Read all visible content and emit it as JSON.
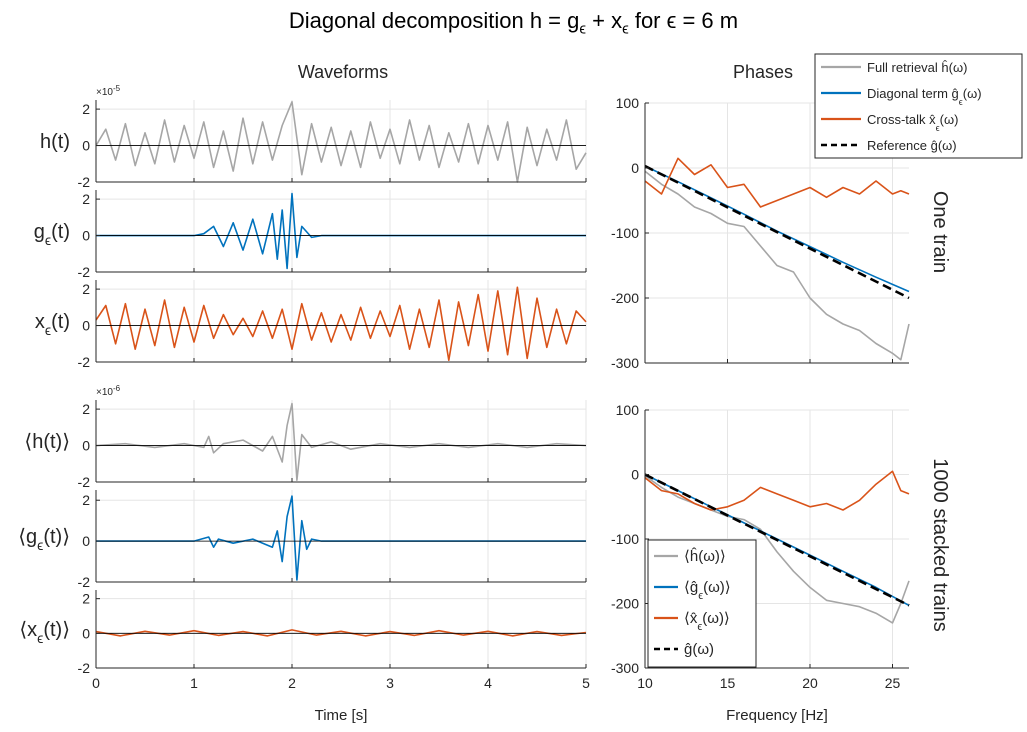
{
  "figure": {
    "title_parts": [
      "Diagonal decomposition h  = g",
      "ϵ",
      " + x",
      "ϵ",
      " for ϵ = 6 m"
    ],
    "left_column_title": "Waveforms",
    "right_column_title": "Phases",
    "row_label_top": "One train",
    "row_label_bottom": "1000 stacked trains"
  },
  "colors": {
    "full": "#a6a6a6",
    "diagonal": "#0072bd",
    "crosstalk": "#d95319",
    "reference": "#000000",
    "grid": "#e5e5e5"
  },
  "top_legend": [
    {
      "label": "Full retrieval ĥ(ω)",
      "color": "#a6a6a6",
      "dashed": false
    },
    {
      "label": "Diagonal term ĝ_ϵ(ω)",
      "color": "#0072bd",
      "dashed": false
    },
    {
      "label": "Cross-talk x̂_ϵ(ω)",
      "color": "#d95319",
      "dashed": false
    },
    {
      "label": "Reference ĝ(ω)",
      "color": "#000000",
      "dashed": true
    }
  ],
  "bottom_legend": [
    {
      "label": "⟨ĥ(ω)⟩",
      "color": "#a6a6a6",
      "dashed": false
    },
    {
      "label": "⟨ĝ_ϵ(ω)⟩",
      "color": "#0072bd",
      "dashed": false
    },
    {
      "label": "⟨x̂_ϵ(ω)⟩",
      "color": "#d95319",
      "dashed": false
    },
    {
      "label": "ĝ(ω)",
      "color": "#000000",
      "dashed": true
    }
  ],
  "chart_data": [
    {
      "type": "line",
      "panel": "waveform",
      "ylabel": "h(t)",
      "exponent": "×10-5",
      "xlim": [
        0,
        5
      ],
      "ylim": [
        -2,
        2.5
      ],
      "yticks": [
        -2,
        0,
        2
      ],
      "show_xticklabels": false,
      "series": [
        {
          "color": "#a6a6a6",
          "x": [
            0.0,
            0.1,
            0.2,
            0.3,
            0.4,
            0.5,
            0.6,
            0.7,
            0.8,
            0.9,
            1.0,
            1.1,
            1.2,
            1.3,
            1.4,
            1.5,
            1.6,
            1.7,
            1.8,
            1.9,
            2.0,
            2.1,
            2.2,
            2.3,
            2.4,
            2.5,
            2.6,
            2.7,
            2.8,
            2.9,
            3.0,
            3.1,
            3.2,
            3.3,
            3.4,
            3.5,
            3.6,
            3.7,
            3.8,
            3.9,
            4.0,
            4.1,
            4.2,
            4.3,
            4.4,
            4.5,
            4.6,
            4.7,
            4.8,
            4.9,
            5.0
          ],
          "y": [
            0.0,
            0.9,
            -0.8,
            1.2,
            -1.1,
            0.7,
            -1.0,
            1.4,
            -0.9,
            1.1,
            -0.7,
            1.3,
            -1.2,
            0.8,
            -1.4,
            1.5,
            -1.0,
            1.3,
            -0.8,
            1.1,
            2.4,
            -1.6,
            1.2,
            -0.9,
            1.0,
            -1.1,
            0.8,
            -1.2,
            1.3,
            -0.7,
            0.9,
            -1.0,
            1.4,
            -0.8,
            1.1,
            -1.2,
            0.7,
            -0.9,
            1.2,
            -1.0,
            1.1,
            -0.8,
            1.3,
            -2.0,
            1.0,
            -1.1,
            0.9,
            -0.8,
            1.4,
            -1.3,
            -0.4
          ]
        }
      ]
    },
    {
      "type": "line",
      "panel": "waveform",
      "ylabel": "g_ϵ(t)",
      "xlim": [
        0,
        5
      ],
      "ylim": [
        -2,
        2.5
      ],
      "yticks": [
        -2,
        0,
        2
      ],
      "show_xticklabels": false,
      "series": [
        {
          "color": "#0072bd",
          "x": [
            0.0,
            0.5,
            1.0,
            1.1,
            1.2,
            1.3,
            1.4,
            1.5,
            1.6,
            1.7,
            1.8,
            1.85,
            1.9,
            1.95,
            2.0,
            2.05,
            2.1,
            2.2,
            2.3,
            2.5,
            3.0,
            4.0,
            5.0
          ],
          "y": [
            0.0,
            0.0,
            0.0,
            0.1,
            0.5,
            -0.6,
            0.7,
            -0.8,
            0.9,
            -1.0,
            1.2,
            -1.3,
            1.4,
            -1.8,
            2.3,
            -1.2,
            0.5,
            -0.1,
            0.0,
            0.0,
            0.0,
            0.0,
            0.0
          ]
        }
      ]
    },
    {
      "type": "line",
      "panel": "waveform",
      "ylabel": "x_ϵ(t)",
      "xlim": [
        0,
        5
      ],
      "ylim": [
        -2,
        2.5
      ],
      "yticks": [
        -2,
        0,
        2
      ],
      "show_xticklabels": false,
      "series": [
        {
          "color": "#d95319",
          "x": [
            0.0,
            0.1,
            0.2,
            0.3,
            0.4,
            0.5,
            0.6,
            0.7,
            0.8,
            0.9,
            1.0,
            1.1,
            1.2,
            1.3,
            1.4,
            1.5,
            1.6,
            1.7,
            1.8,
            1.9,
            2.0,
            2.1,
            2.2,
            2.3,
            2.4,
            2.5,
            2.6,
            2.7,
            2.8,
            2.9,
            3.0,
            3.1,
            3.2,
            3.3,
            3.4,
            3.5,
            3.6,
            3.7,
            3.8,
            3.9,
            4.0,
            4.1,
            4.2,
            4.3,
            4.4,
            4.5,
            4.6,
            4.7,
            4.8,
            4.9,
            5.0
          ],
          "y": [
            0.3,
            1.1,
            -1.0,
            1.2,
            -1.3,
            0.9,
            -1.1,
            1.4,
            -1.2,
            1.0,
            -0.9,
            1.1,
            -0.7,
            0.6,
            -0.5,
            0.4,
            -0.6,
            0.8,
            -0.7,
            0.9,
            -1.3,
            1.2,
            -0.8,
            0.7,
            -0.9,
            0.6,
            -0.8,
            1.0,
            -0.7,
            0.8,
            -0.6,
            1.1,
            -1.3,
            0.9,
            -1.2,
            1.4,
            -1.9,
            1.3,
            -1.1,
            1.7,
            -1.4,
            1.9,
            -1.6,
            2.1,
            -1.8,
            1.5,
            -1.2,
            0.9,
            -1.0,
            0.8,
            0.2
          ]
        }
      ]
    },
    {
      "type": "line",
      "panel": "waveform",
      "ylabel": "⟨h(t)⟩",
      "exponent": "×10-6",
      "xlim": [
        0,
        5
      ],
      "ylim": [
        -2,
        2.5
      ],
      "yticks": [
        -2,
        0,
        2
      ],
      "show_xticklabels": false,
      "series": [
        {
          "color": "#a6a6a6",
          "x": [
            0.0,
            0.3,
            0.6,
            0.9,
            1.1,
            1.15,
            1.2,
            1.3,
            1.5,
            1.7,
            1.8,
            1.9,
            1.95,
            2.0,
            2.05,
            2.1,
            2.2,
            2.4,
            2.6,
            2.9,
            3.2,
            3.5,
            3.8,
            4.1,
            4.4,
            4.7,
            5.0
          ],
          "y": [
            0.0,
            0.1,
            -0.1,
            0.1,
            -0.1,
            0.5,
            -0.4,
            0.1,
            0.3,
            -0.3,
            0.5,
            -0.9,
            1.1,
            2.3,
            -1.9,
            0.6,
            -0.1,
            0.2,
            -0.2,
            0.1,
            -0.1,
            0.1,
            -0.1,
            0.1,
            -0.1,
            0.1,
            0.0
          ]
        }
      ]
    },
    {
      "type": "line",
      "panel": "waveform",
      "ylabel": "⟨g_ϵ(t)⟩",
      "xlim": [
        0,
        5
      ],
      "ylim": [
        -2,
        2.5
      ],
      "yticks": [
        -2,
        0,
        2
      ],
      "show_xticklabels": false,
      "series": [
        {
          "color": "#0072bd",
          "x": [
            0.0,
            1.0,
            1.15,
            1.2,
            1.25,
            1.4,
            1.6,
            1.8,
            1.85,
            1.9,
            1.95,
            2.0,
            2.05,
            2.1,
            2.15,
            2.2,
            2.3,
            2.5,
            5.0
          ],
          "y": [
            0.0,
            0.0,
            0.2,
            -0.3,
            0.1,
            -0.1,
            0.1,
            -0.3,
            0.5,
            -1.0,
            1.2,
            2.2,
            -1.9,
            1.0,
            -0.4,
            0.1,
            0.0,
            0.0,
            0.0
          ]
        }
      ]
    },
    {
      "type": "line",
      "panel": "waveform",
      "ylabel": "⟨x_ϵ(t)⟩",
      "xlim": [
        0,
        5
      ],
      "ylim": [
        -2,
        2.5
      ],
      "yticks": [
        -2,
        0,
        2
      ],
      "show_xticklabels": true,
      "xticks": [
        0,
        1,
        2,
        3,
        4,
        5
      ],
      "xlabel": "Time   [s]",
      "series": [
        {
          "color": "#d95319",
          "x": [
            0.0,
            0.25,
            0.5,
            0.75,
            1.0,
            1.25,
            1.5,
            1.75,
            2.0,
            2.25,
            2.5,
            2.75,
            3.0,
            3.25,
            3.5,
            3.75,
            4.0,
            4.25,
            4.5,
            4.75,
            5.0
          ],
          "y": [
            0.1,
            -0.15,
            0.12,
            -0.1,
            0.15,
            -0.12,
            0.1,
            -0.15,
            0.2,
            -0.1,
            0.12,
            -0.15,
            0.1,
            -0.12,
            0.15,
            -0.1,
            0.12,
            -0.15,
            0.1,
            -0.12,
            0.05
          ]
        }
      ]
    },
    {
      "type": "line",
      "panel": "phase",
      "xlim": [
        10,
        26
      ],
      "ylim": [
        -300,
        100
      ],
      "yticks": [
        -300,
        -200,
        -100,
        0,
        100
      ],
      "show_xticklabels": false,
      "series": [
        {
          "name": "Full retrieval",
          "color": "#a6a6a6",
          "x": [
            10,
            11,
            12,
            13,
            14,
            15,
            16,
            17,
            18,
            19,
            20,
            21,
            22,
            23,
            24,
            25,
            25.5,
            26
          ],
          "y": [
            -5,
            -25,
            -40,
            -60,
            -70,
            -85,
            -90,
            -120,
            -150,
            -160,
            -200,
            -225,
            -240,
            -250,
            -270,
            -285,
            -295,
            -240
          ]
        },
        {
          "name": "Diagonal term",
          "color": "#0072bd",
          "x": [
            10,
            12,
            14,
            16,
            18,
            20,
            22,
            24,
            26
          ],
          "y": [
            3,
            -21,
            -46,
            -71,
            -97,
            -121,
            -145,
            -168,
            -190
          ]
        },
        {
          "name": "Cross-talk",
          "color": "#d95319",
          "x": [
            10,
            11,
            12,
            13,
            14,
            15,
            16,
            17,
            18,
            19,
            20,
            21,
            22,
            23,
            24,
            25,
            25.5,
            26
          ],
          "y": [
            -20,
            -40,
            15,
            -10,
            5,
            -30,
            -25,
            -60,
            -50,
            -40,
            -30,
            -45,
            -30,
            -40,
            -20,
            -40,
            -35,
            -40
          ]
        },
        {
          "name": "Reference",
          "color": "#000000",
          "dashed": true,
          "x": [
            10,
            26
          ],
          "y": [
            3,
            -200
          ]
        }
      ]
    },
    {
      "type": "line",
      "panel": "phase",
      "xlim": [
        10,
        26
      ],
      "ylim": [
        -300,
        100
      ],
      "yticks": [
        -300,
        -200,
        -100,
        0,
        100
      ],
      "show_xticklabels": true,
      "xticks": [
        10,
        15,
        20,
        25
      ],
      "xlabel": "Frequency   [Hz]",
      "series": [
        {
          "name": "⟨ĥ(ω)⟩",
          "color": "#a6a6a6",
          "x": [
            10,
            11,
            12,
            13,
            14,
            15,
            16,
            17,
            18,
            19,
            20,
            21,
            22,
            23,
            24,
            25,
            25.5,
            26
          ],
          "y": [
            -2,
            -20,
            -35,
            -45,
            -55,
            -65,
            -70,
            -85,
            -120,
            -150,
            -175,
            -195,
            -200,
            -205,
            -215,
            -230,
            -200,
            -165
          ]
        },
        {
          "name": "⟨ĝ_ϵ(ω)⟩",
          "color": "#0072bd",
          "x": [
            10,
            12,
            14,
            16,
            18,
            20,
            22,
            24,
            26
          ],
          "y": [
            0,
            -25,
            -50,
            -75,
            -100,
            -125,
            -150,
            -175,
            -203
          ]
        },
        {
          "name": "⟨x̂_ϵ(ω)⟩",
          "color": "#d95319",
          "x": [
            10,
            11,
            12,
            13,
            14,
            15,
            16,
            17,
            18,
            19,
            20,
            21,
            22,
            23,
            24,
            25,
            25.5,
            26
          ],
          "y": [
            -5,
            -25,
            -30,
            -45,
            -55,
            -50,
            -40,
            -20,
            -30,
            -40,
            -50,
            -45,
            -55,
            -40,
            -15,
            5,
            -25,
            -30
          ]
        },
        {
          "name": "ĝ(ω)",
          "color": "#000000",
          "dashed": true,
          "x": [
            10,
            26
          ],
          "y": [
            0,
            -203
          ]
        }
      ]
    }
  ]
}
